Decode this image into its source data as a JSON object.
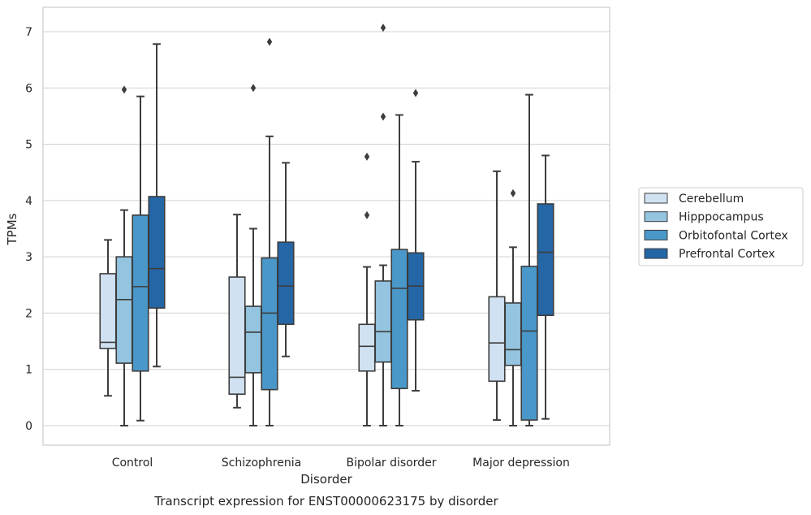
{
  "chart_data": {
    "type": "box",
    "title": "Transcript expression for ENST00000623175 by disorder",
    "xlabel": "Disorder",
    "ylabel": "TPMs",
    "ylim": [
      -0.34,
      7.45
    ],
    "yticks": [
      0,
      1,
      2,
      3,
      4,
      5,
      6,
      7
    ],
    "grid": "horizontal",
    "legend_position": "right",
    "categories": [
      "Control",
      "Schizophrenia",
      "Bipolar disorder",
      "Major depression"
    ],
    "series": [
      {
        "name": "Cerebellum",
        "color": "#d0e1f2",
        "boxes": [
          {
            "whisker_low": 0.53,
            "q1": 1.37,
            "median": 1.48,
            "q3": 2.7,
            "whisker_high": 3.3,
            "outliers": []
          },
          {
            "whisker_low": 0.32,
            "q1": 0.56,
            "median": 0.86,
            "q3": 2.64,
            "whisker_high": 3.75,
            "outliers": []
          },
          {
            "whisker_low": 0.0,
            "q1": 0.97,
            "median": 1.41,
            "q3": 1.8,
            "whisker_high": 2.82,
            "outliers": [
              3.74,
              4.78
            ]
          },
          {
            "whisker_low": 0.1,
            "q1": 0.79,
            "median": 1.47,
            "q3": 2.29,
            "whisker_high": 4.52,
            "outliers": []
          }
        ]
      },
      {
        "name": "Hipppocampus",
        "color": "#94c4df",
        "boxes": [
          {
            "whisker_low": 0.0,
            "q1": 1.11,
            "median": 2.24,
            "q3": 3.0,
            "whisker_high": 3.83,
            "outliers": [
              5.97
            ]
          },
          {
            "whisker_low": 0.0,
            "q1": 0.94,
            "median": 1.66,
            "q3": 2.12,
            "whisker_high": 3.5,
            "outliers": [
              6.0
            ]
          },
          {
            "whisker_low": 0.0,
            "q1": 1.13,
            "median": 1.67,
            "q3": 2.57,
            "whisker_high": 2.85,
            "outliers": [
              5.49,
              7.07
            ]
          },
          {
            "whisker_low": 0.0,
            "q1": 1.07,
            "median": 1.35,
            "q3": 2.18,
            "whisker_high": 3.17,
            "outliers": [
              4.13
            ]
          }
        ]
      },
      {
        "name": "Orbitofontal Cortex",
        "color": "#4a98c9",
        "boxes": [
          {
            "whisker_low": 0.09,
            "q1": 0.97,
            "median": 2.47,
            "q3": 3.74,
            "whisker_high": 5.85,
            "outliers": []
          },
          {
            "whisker_low": 0.0,
            "q1": 0.64,
            "median": 2.0,
            "q3": 2.98,
            "whisker_high": 5.14,
            "outliers": [
              6.82
            ]
          },
          {
            "whisker_low": 0.0,
            "q1": 0.66,
            "median": 2.44,
            "q3": 3.13,
            "whisker_high": 5.52,
            "outliers": []
          },
          {
            "whisker_low": 0.0,
            "q1": 0.1,
            "median": 1.68,
            "q3": 2.83,
            "whisker_high": 5.88,
            "outliers": []
          }
        ]
      },
      {
        "name": "Prefrontal Cortex",
        "color": "#2466a6",
        "boxes": [
          {
            "whisker_low": 1.05,
            "q1": 2.09,
            "median": 2.79,
            "q3": 4.07,
            "whisker_high": 6.78,
            "outliers": []
          },
          {
            "whisker_low": 1.23,
            "q1": 1.8,
            "median": 2.48,
            "q3": 3.26,
            "whisker_high": 4.67,
            "outliers": []
          },
          {
            "whisker_low": 0.62,
            "q1": 1.88,
            "median": 2.48,
            "q3": 3.07,
            "whisker_high": 4.69,
            "outliers": [
              5.91
            ]
          },
          {
            "whisker_low": 0.12,
            "q1": 1.96,
            "median": 3.08,
            "q3": 3.94,
            "whisker_high": 4.8,
            "outliers": []
          }
        ]
      }
    ]
  }
}
